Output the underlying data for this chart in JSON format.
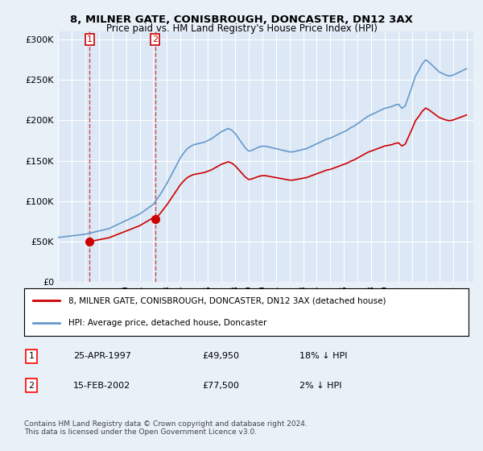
{
  "title1": "8, MILNER GATE, CONISBROUGH, DONCASTER, DN12 3AX",
  "title2": "Price paid vs. HM Land Registry's House Price Index (HPI)",
  "ylabel_ticks": [
    "£0",
    "£50K",
    "£100K",
    "£150K",
    "£200K",
    "£250K",
    "£300K"
  ],
  "ylabel_values": [
    0,
    50000,
    100000,
    150000,
    200000,
    250000,
    300000
  ],
  "ylim": [
    0,
    310000
  ],
  "sale1_year": 1997.33,
  "sale1_price": 49950,
  "sale1_label": "1",
  "sale2_year": 2002.125,
  "sale2_price": 77500,
  "sale2_label": "2",
  "legend_line1": "8, MILNER GATE, CONISBROUGH, DONCASTER, DN12 3AX (detached house)",
  "legend_line2": "HPI: Average price, detached house, Doncaster",
  "table_row1": [
    "1",
    "25-APR-1997",
    "£49,950",
    "18% ↓ HPI"
  ],
  "table_row2": [
    "2",
    "15-FEB-2002",
    "£77,500",
    "2% ↓ HPI"
  ],
  "footnote": "Contains HM Land Registry data © Crown copyright and database right 2024.\nThis data is licensed under the Open Government Licence v3.0.",
  "line_color_sale": "#cc0000",
  "line_color_hpi": "#6699cc",
  "bg_color": "#e8f0f8",
  "plot_bg": "#dce8f5"
}
